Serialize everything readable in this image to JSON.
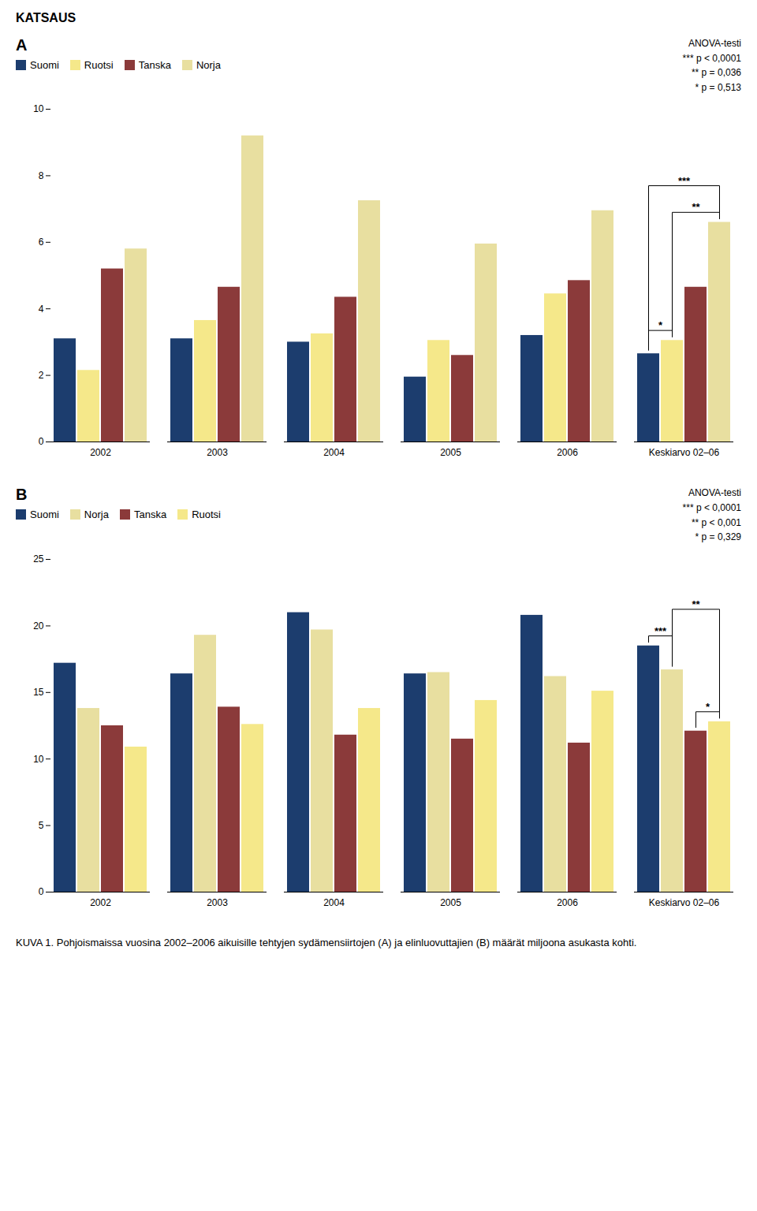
{
  "title": "KATSAUS",
  "caption": "KUVA 1. Pohjoismaissa vuosina 2002–2006 aikuisille tehtyjen sydämensiirtojen (A) ja elinluovuttajien (B) määrät miljoona asukasta kohti.",
  "chart_data": [
    {
      "type": "bar",
      "title": "A",
      "categories": [
        "2002",
        "2003",
        "2004",
        "2005",
        "2006",
        "Keskiarvo 02–06"
      ],
      "series": [
        {
          "name": "Suomi",
          "color": "#1c3d6e",
          "values": [
            3.1,
            3.1,
            3.0,
            1.95,
            3.2,
            2.65
          ]
        },
        {
          "name": "Ruotsi",
          "color": "#f5e88a",
          "values": [
            2.15,
            3.65,
            3.25,
            3.05,
            4.45,
            3.05
          ]
        },
        {
          "name": "Tanska",
          "color": "#8b3a3a",
          "values": [
            5.2,
            4.65,
            4.35,
            2.6,
            4.85,
            4.65
          ]
        },
        {
          "name": "Norja",
          "color": "#e8dfa0",
          "values": [
            5.8,
            9.2,
            7.25,
            5.95,
            6.95,
            6.6
          ]
        }
      ],
      "ylim": [
        0,
        10
      ],
      "yticks": [
        0,
        2,
        4,
        6,
        8,
        10
      ],
      "grid": false,
      "legend": "upper left",
      "annotations": [
        {
          "text": "ANOVA-testi\n*** p < 0,0001\n** p = 0,036\n* p = 0,513"
        },
        {
          "text": "***",
          "category": "Keskiarvo 02–06",
          "from": "Suomi",
          "to": "Norja"
        },
        {
          "text": "**",
          "category": "Keskiarvo 02–06",
          "from": "Ruotsi",
          "to": "Norja"
        },
        {
          "text": "*",
          "category": "Keskiarvo 02–06",
          "from": "Suomi",
          "to": "Ruotsi"
        }
      ]
    },
    {
      "type": "bar",
      "title": "B",
      "categories": [
        "2002",
        "2003",
        "2004",
        "2005",
        "2006",
        "Keskiarvo 02–06"
      ],
      "series": [
        {
          "name": "Suomi",
          "color": "#1c3d6e",
          "values": [
            17.2,
            16.4,
            21.0,
            16.4,
            20.8,
            18.5
          ]
        },
        {
          "name": "Norja",
          "color": "#e8dfa0",
          "values": [
            13.8,
            19.3,
            19.7,
            16.5,
            16.2,
            16.7
          ]
        },
        {
          "name": "Tanska",
          "color": "#8b3a3a",
          "values": [
            12.5,
            13.9,
            11.8,
            11.5,
            11.2,
            12.1
          ]
        },
        {
          "name": "Ruotsi",
          "color": "#f5e88a",
          "values": [
            10.9,
            12.6,
            13.8,
            14.4,
            15.1,
            12.8
          ]
        }
      ],
      "ylim": [
        0,
        25
      ],
      "yticks": [
        0,
        5,
        10,
        15,
        20,
        25
      ],
      "grid": false,
      "legend": "upper left",
      "annotations": [
        {
          "text": "ANOVA-testi\n*** p < 0,0001\n** p < 0,001\n* p = 0,329"
        },
        {
          "text": "***",
          "category": "Keskiarvo 02–06",
          "from": "Suomi",
          "to": "Norja"
        },
        {
          "text": "**",
          "category": "Keskiarvo 02–06",
          "from": "Norja",
          "to": "Ruotsi"
        },
        {
          "text": "*",
          "category": "Keskiarvo 02–06",
          "from": "Tanska",
          "to": "Ruotsi"
        }
      ]
    }
  ]
}
